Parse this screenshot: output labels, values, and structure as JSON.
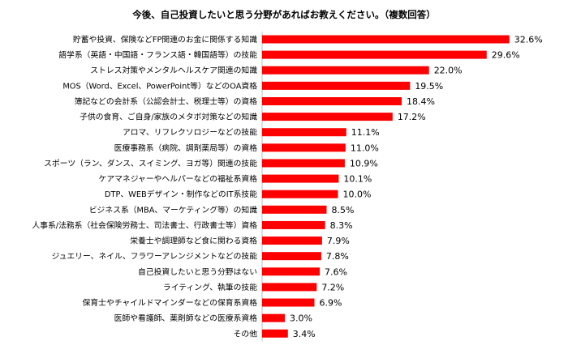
{
  "chart_data": {
    "type": "bar",
    "orientation": "horizontal",
    "title": "今後、自己投資したいと思う分野があればお教えください。（複数回答）",
    "xlabel": "",
    "ylabel": "",
    "xlim": [
      0,
      35
    ],
    "grid": false,
    "legend": "none",
    "bar_color": "#ff0000",
    "categories": [
      "貯蓄や投資、保険などFP関連のお金に関係する知識",
      "語学系（英語・中国語・フランス語・韓国語等）の技能",
      "ストレス対策やメンタルヘルスケア関連の知識",
      "MOS（Word、Excel、PowerPoint等）などのOA資格",
      "簿記などの会計系（公認会計士、税理士等）の資格",
      "子供の食育、ご自身/家族のメタボ対策などの知識",
      "アロマ、リフレクソロジーなどの技能",
      "医療事務系（病院、調剤薬局等）の資格",
      "スポーツ（ラン、ダンス、スイミング、ヨガ等）関連の技能",
      "ケアマネジャーやヘルパーなどの福祉系資格",
      "DTP、WEBデザイン・制作などのIT系技能",
      "ビジネス系（MBA、マーケティング等）の知識",
      "人事系/法務系（社会保険労務士、司法書士、行政書士等）資格",
      "栄養士や調理師など食に関わる資格",
      "ジュエリー、ネイル、フラワーアレンジメントなどの技能",
      "自己投資したいと思う分野はない",
      "ライティング、執筆の技能",
      "保育士やチャイルドマインダーなどの保育系資格",
      "医師や看護師、薬剤師などの医療系資格",
      "その他"
    ],
    "values": [
      32.6,
      29.6,
      22.0,
      19.5,
      18.4,
      17.2,
      11.1,
      11.0,
      10.9,
      10.1,
      10.0,
      8.5,
      8.3,
      7.9,
      7.8,
      7.6,
      7.2,
      6.9,
      3.0,
      3.4
    ],
    "value_labels": [
      "32.6%",
      "29.6%",
      "22.0%",
      "19.5%",
      "18.4%",
      "17.2%",
      "11.1%",
      "11.0%",
      "10.9%",
      "10.1%",
      "10.0%",
      "8.5%",
      "8.3%",
      "7.9%",
      "7.8%",
      "7.6%",
      "7.2%",
      "6.9%",
      "3.0%",
      "3.4%"
    ]
  }
}
